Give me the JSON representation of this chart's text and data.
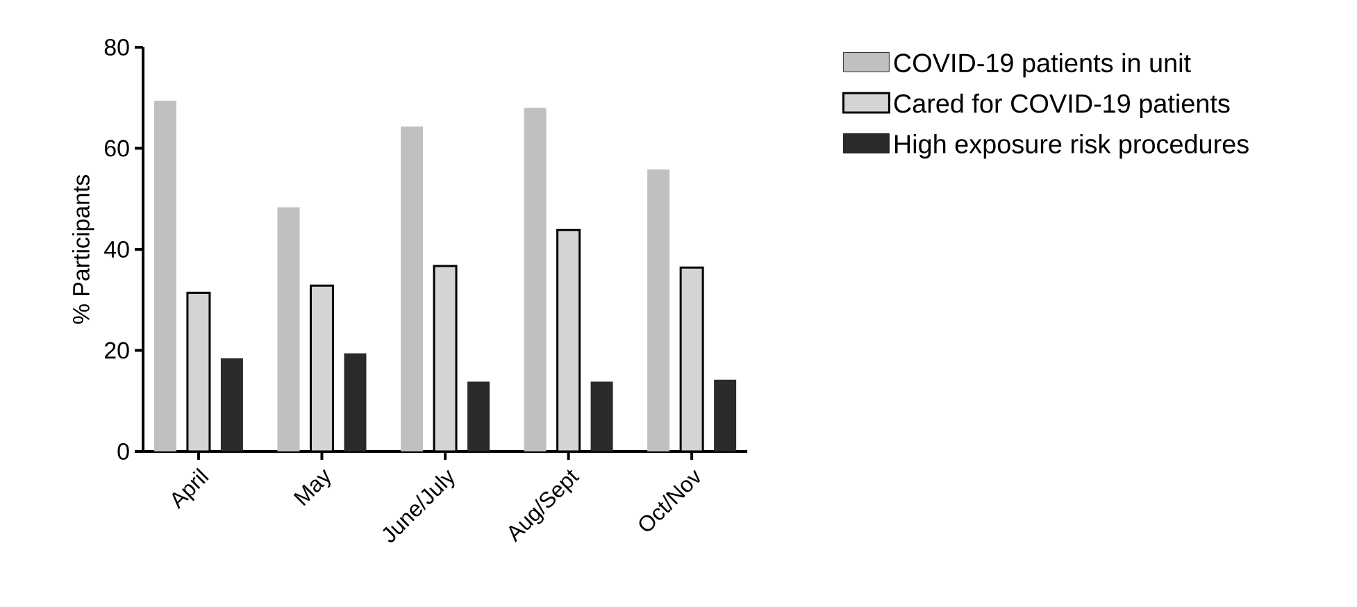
{
  "chart_data": {
    "type": "bar",
    "ylabel": "% Participants",
    "categories": [
      "April",
      "May",
      "June/July",
      "Aug/Sept",
      "Oct/Nov"
    ],
    "series": [
      {
        "name": "COVID-19 patients in unit",
        "color": "#c0c0c0",
        "values": [
          69.4,
          48.3,
          64.3,
          68.0,
          55.8
        ]
      },
      {
        "name": "Cared for COVID-19 patients",
        "color": "#d4d4d4",
        "values": [
          31.4,
          32.8,
          36.7,
          43.8,
          36.4
        ]
      },
      {
        "name": "High exposure risk procedures",
        "color": "#2a2a2a",
        "values": [
          18.4,
          19.4,
          13.8,
          13.8,
          14.2
        ]
      }
    ],
    "ylim": [
      0,
      80
    ],
    "yticks": [
      0,
      20,
      40,
      60,
      80
    ],
    "grid": false,
    "legend": "right"
  }
}
